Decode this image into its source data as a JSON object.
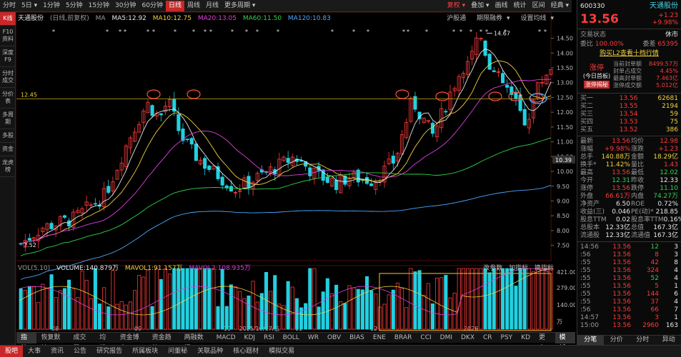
{
  "topbar": {
    "items": [
      "分时",
      "5日",
      "1分钟",
      "5分钟",
      "15分钟",
      "30分钟",
      "60分钟",
      "日线",
      "周线",
      "月线",
      "更多周期"
    ],
    "right": [
      "复权",
      "叠加",
      "画线",
      "统计",
      "区间",
      "经典"
    ],
    "active": "日线",
    "dropdowns": {
      "day5": "5日 ▾",
      "more": "更多周期 ▾",
      "fuquan": "复权 ▾",
      "overlay": "叠加 ▾",
      "classic": "经典 ▾"
    }
  },
  "leftbar": [
    "K线",
    "F10资料",
    "深度F9",
    "分时成交",
    "分价表",
    "多周期",
    "多股",
    "资金",
    "龙虎榜"
  ],
  "chart": {
    "title": "天通股份",
    "subtitle": "(日线,前复权)",
    "ma_label": "MA",
    "ma5": "MA5:12.92",
    "ma10": "MA10:12.75",
    "ma20": "MA20:13.05",
    "ma60": "MA60:11.50",
    "ma120": "MA120:10.83",
    "tools": [
      "沪股通",
      "期限融券",
      "设置均线"
    ],
    "tools_arrows": [
      "",
      "▾",
      "▾"
    ],
    "yaxis": [
      "14.50",
      "14.00",
      "13.50",
      "13.00",
      "12.50",
      "12.00",
      "11.50",
      "11.00",
      "10.50",
      "10.00",
      "9.50",
      "9.00",
      "8.50",
      "8.00",
      "7.50"
    ],
    "last_price_tag": "10.39",
    "hline_label": "12.45",
    "high_label": "14.67",
    "low_label": "7.52",
    "xaxis": [
      "08",
      "09",
      "10",
      "2025/10/17/五",
      "11",
      "12",
      "2026"
    ],
    "colors": {
      "up": "#ff3b3b",
      "down": "#22d0e0",
      "ma5": "#e8e8e8",
      "ma10": "#f2d23c",
      "ma20": "#e040e0",
      "ma60": "#2fd34a",
      "ma120": "#4aa8ff"
    }
  },
  "volume": {
    "label": "VOL(5,10)",
    "volume": "VOLUME:140.879万",
    "mavol1": "MAVOL1:91.157万",
    "mavol2": "MAVOL2:108.935万",
    "yaxis": [
      "421.00",
      "279.00",
      "140.00",
      "万"
    ],
    "tools": [
      "改参数",
      "加指标",
      "换指标"
    ]
  },
  "indicators": [
    "指标",
    "恢复默认",
    "成交量",
    "均线",
    "资金博弈",
    "资金趋势",
    "两融数据",
    "MACD",
    "KDJ",
    "RSI",
    "BOLL",
    "WR",
    "OBV",
    "BIAS",
    "ENE",
    "BRAR",
    "CCI",
    "DMI",
    "DKX",
    "CR",
    "PSY",
    "KD",
    "更多",
    "模板"
  ],
  "bottombar": [
    "股吧",
    "大事",
    "资讯",
    "公告",
    "研究报告",
    "所属板块",
    "问董秘",
    "关联品种",
    "核心题材",
    "模拟交易"
  ],
  "rightpanel": {
    "code": "600330",
    "name": "天通股份",
    "price": "13.56",
    "change": "+1.23",
    "change_pct": "+9.98%",
    "status_label": "交易状态",
    "status": "休市",
    "weibi_label": "委比",
    "weibi": "100.00%",
    "weicha_label": "委差",
    "weicha": "65395",
    "buy_l2": "购买L2查看十档行情",
    "limit_up": "涨停",
    "limit_sub": "(今日首板)",
    "limit_btn": "涨停揭秘",
    "seal_amount_label": "当前封单额",
    "seal_amount": "8499.57万",
    "seal_ratio_label": "封单占成交",
    "seal_ratio": "4.45%",
    "max_seal_label": "最高封单额",
    "max_seal": "7.463亿",
    "limit_turnover_label": "涨停成交额",
    "limit_turnover": "5.012亿",
    "bids": [
      {
        "label": "买一",
        "price": "13.56",
        "vol": "62681"
      },
      {
        "label": "买二",
        "price": "13.55",
        "vol": "2194"
      },
      {
        "label": "买三",
        "price": "13.54",
        "vol": "59"
      },
      {
        "label": "买四",
        "price": "13.53",
        "vol": "75"
      },
      {
        "label": "买五",
        "price": "13.52",
        "vol": "386"
      }
    ],
    "stats": [
      {
        "l1": "最新",
        "v1": "13.56",
        "c1": "red",
        "l2": "均价",
        "v2": "12.98",
        "c2": "red"
      },
      {
        "l1": "涨幅",
        "v1": "+9.98%",
        "c1": "red",
        "l2": "涨跌",
        "v2": "+1.23",
        "c2": "red"
      },
      {
        "l1": "总手",
        "v1": "140.88万",
        "c1": "yellow",
        "l2": "金额",
        "v2": "18.29亿",
        "c2": "yellow"
      },
      {
        "l1": "换手*",
        "v1": "11.42%",
        "c1": "yellow",
        "l2": "量比",
        "v2": "1.43",
        "c2": "red"
      },
      {
        "l1": "最高",
        "v1": "13.56",
        "c1": "red",
        "l2": "最低",
        "v2": "12.02",
        "c2": "green"
      },
      {
        "l1": "今开",
        "v1": "12.31",
        "c1": "green",
        "l2": "昨收",
        "v2": "12.33",
        "c2": "white"
      },
      {
        "l1": "涨停",
        "v1": "13.56",
        "c1": "red",
        "l2": "跌停",
        "v2": "11.10",
        "c2": "green"
      },
      {
        "l1": "外盘",
        "v1": "66.61万",
        "c1": "red",
        "l2": "内盘",
        "v2": "74.27万",
        "c2": "green"
      },
      {
        "l1": "净资产",
        "v1": "6.50",
        "c1": "white",
        "l2": "ROE",
        "v2": "0.72%",
        "c2": "white"
      },
      {
        "l1": "收益(三)",
        "v1": "0.046",
        "c1": "white",
        "l2": "PE(动)*",
        "v2": "218.85",
        "c2": "white"
      },
      {
        "l1": "股息TTM",
        "v1": "0.02",
        "c1": "white",
        "l2": "股息率TTM",
        "v2": "0.16%",
        "c2": "white"
      },
      {
        "l1": "总股本",
        "v1": "12.33亿",
        "c1": "white",
        "l2": "总值",
        "v2": "167.3亿",
        "c2": "white"
      },
      {
        "l1": "流通股",
        "v1": "12.33亿",
        "c1": "white",
        "l2": "流通值",
        "v2": "167.3亿",
        "c2": "white"
      }
    ],
    "ticks": [
      {
        "t": "14:56",
        "p": "13.56",
        "v": "12",
        "n": "3",
        "vc": "green"
      },
      {
        "t": ":56",
        "p": "13.56",
        "v": "8",
        "n": "3",
        "vc": "red"
      },
      {
        "t": ":55",
        "p": "13.56",
        "v": "42",
        "n": "8",
        "vc": "red"
      },
      {
        "t": ":55",
        "p": "13.56",
        "v": "324",
        "n": "4",
        "vc": "red"
      },
      {
        "t": ":55",
        "p": "13.56",
        "v": "52",
        "n": "4",
        "vc": "green"
      },
      {
        "t": ":55",
        "p": "13.56",
        "v": "5",
        "n": "1",
        "vc": "red"
      },
      {
        "t": ":55",
        "p": "13.56",
        "v": "144",
        "n": "6",
        "vc": "red"
      },
      {
        "t": ":55",
        "p": "13.56",
        "v": "37",
        "n": "4",
        "vc": "red"
      },
      {
        "t": ":56",
        "p": "13.56",
        "v": "66",
        "n": "7",
        "vc": "red"
      },
      {
        "t": "14:57",
        "p": "13.56",
        "v": "3",
        "n": "1",
        "vc": "red"
      },
      {
        "t": "15:00",
        "p": "13.56",
        "v": "2960",
        "n": "163",
        "vc": "red"
      }
    ],
    "bottom_tabs": [
      "分笔",
      "分价",
      "分时",
      "异动"
    ]
  }
}
